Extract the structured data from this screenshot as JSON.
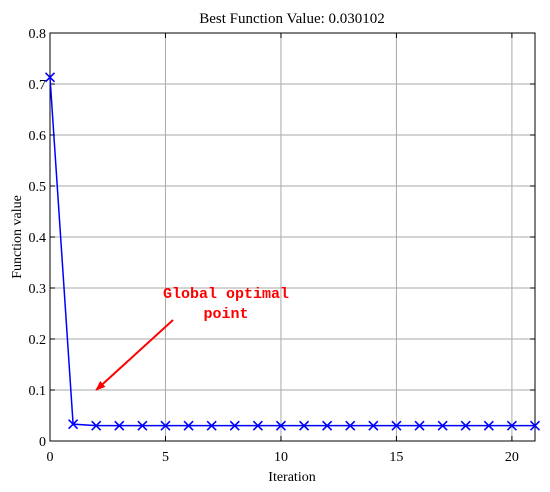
{
  "chart_data": {
    "type": "line",
    "title": "Best Function Value: 0.030102",
    "xlabel": "Iteration",
    "ylabel": "Function value",
    "xlim": [
      0,
      21
    ],
    "ylim": [
      0,
      0.8
    ],
    "xticks": [
      0,
      5,
      10,
      15,
      20
    ],
    "yticks": [
      0,
      0.1,
      0.2,
      0.3,
      0.4,
      0.5,
      0.6,
      0.7,
      0.8
    ],
    "grid": true,
    "legend": "none",
    "series": [
      {
        "color": "#0000ff",
        "marker": "x",
        "x": [
          0,
          1,
          2,
          3,
          4,
          5,
          6,
          7,
          8,
          9,
          10,
          11,
          12,
          13,
          14,
          15,
          16,
          17,
          18,
          19,
          20,
          21
        ],
        "y": [
          0.713,
          0.033,
          0.0301,
          0.0301,
          0.0301,
          0.0301,
          0.0301,
          0.0301,
          0.0301,
          0.0301,
          0.0301,
          0.0301,
          0.0301,
          0.0301,
          0.0301,
          0.0301,
          0.0301,
          0.0301,
          0.0301,
          0.0301,
          0.0301,
          0.0301
        ]
      }
    ],
    "annotation": {
      "lines": [
        "Global optimal",
        "point"
      ],
      "color": "#ff0000",
      "arrow_target": {
        "x": 2,
        "y": 0.1
      }
    }
  }
}
